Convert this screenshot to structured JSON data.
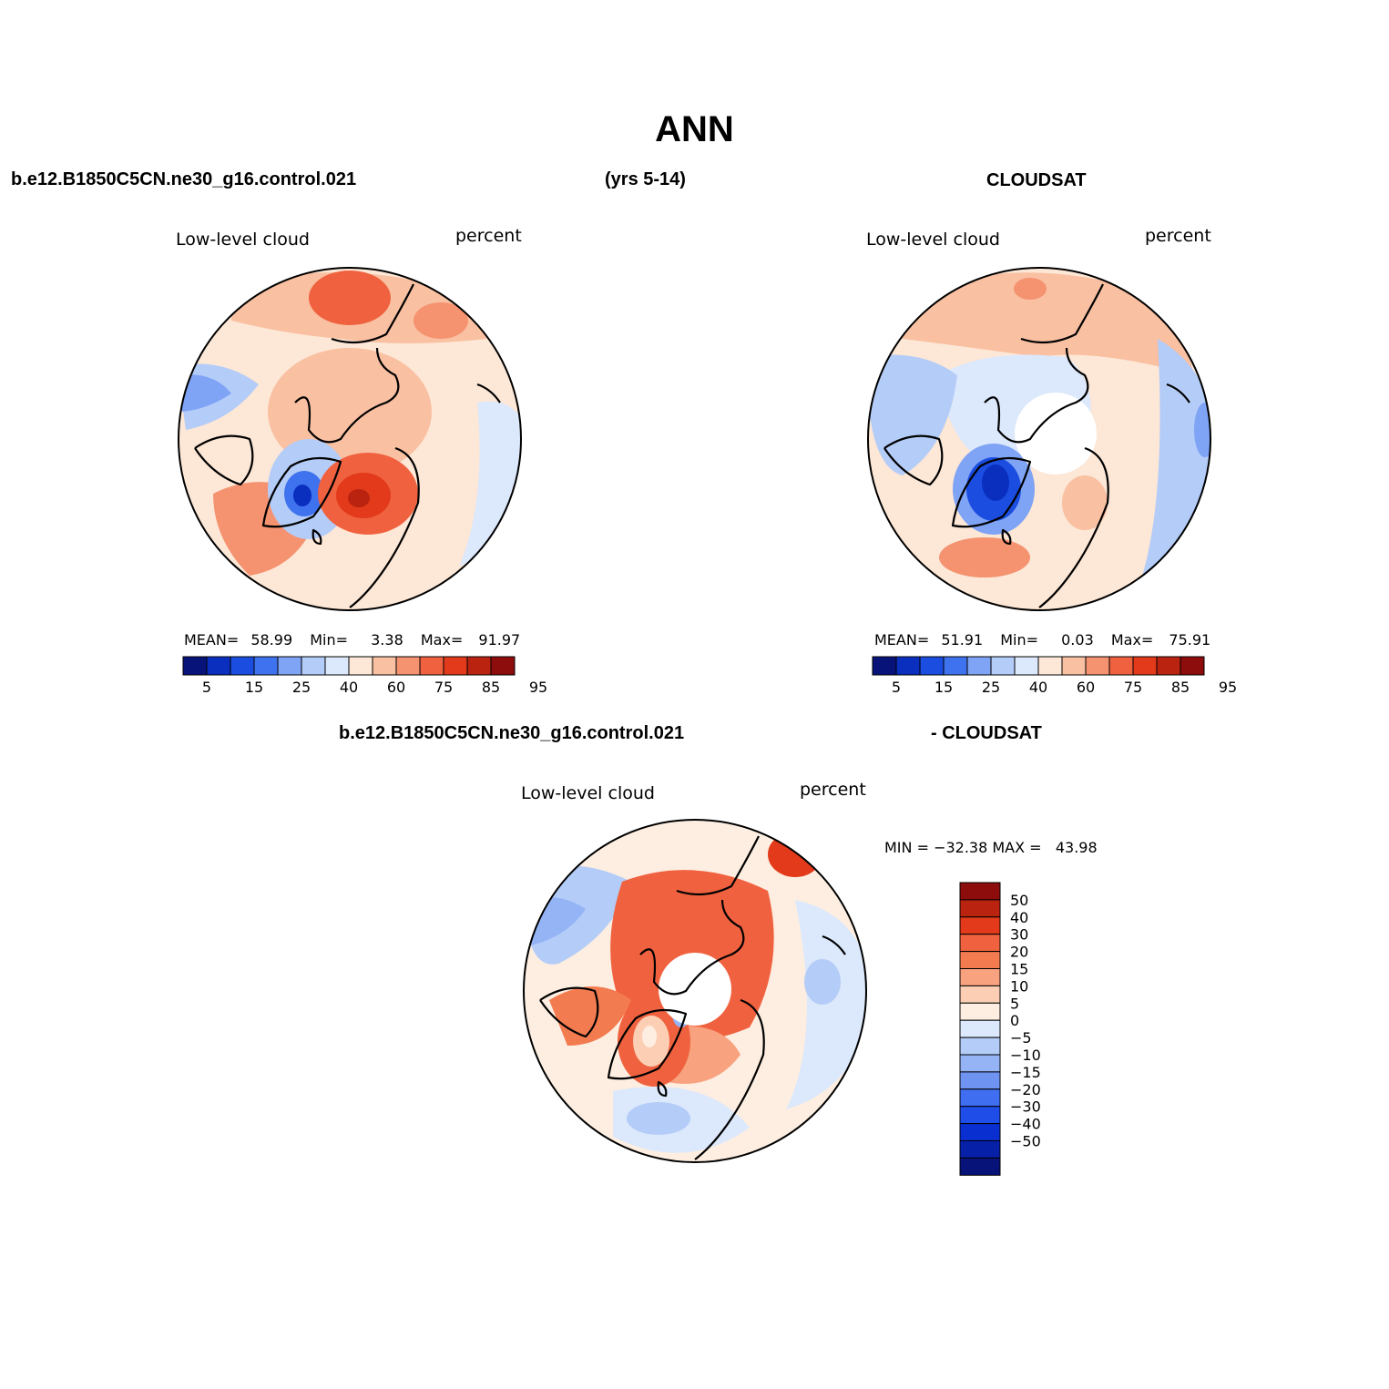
{
  "title": "ANN",
  "header": {
    "case_name": "b.e12.B1850C5CN.ne30_g16.control.021",
    "years": "(yrs 5-14)",
    "obs_name": "CLOUDSAT"
  },
  "diff_header": {
    "case_name": "b.e12.B1850C5CN.ne30_g16.control.021",
    "obs_name": "- CLOUDSAT"
  },
  "panels": {
    "model": {
      "variable": "Low-level cloud",
      "units": "percent",
      "stats": {
        "mean_label": "MEAN=",
        "mean": "58.99",
        "min_label": "Min=",
        "min": "3.38",
        "max_label": "Max=",
        "max": "91.97"
      }
    },
    "obs": {
      "variable": "Low-level cloud",
      "units": "percent",
      "stats": {
        "mean_label": "MEAN=",
        "mean": "51.91",
        "min_label": "Min=",
        "min": "0.03",
        "max_label": "Max=",
        "max": "75.91"
      }
    },
    "diff": {
      "variable": "Low-level cloud",
      "units": "percent",
      "minmax": "MIN = −32.38 MAX =   43.98"
    }
  },
  "colorbar_abs": {
    "colors": [
      "#08137a",
      "#0a2fbf",
      "#1a4de0",
      "#3f72ee",
      "#7fa3f5",
      "#b4ccf8",
      "#dce8fb",
      "#fde7d6",
      "#f9c0a2",
      "#f59270",
      "#f0623f",
      "#e23a1a",
      "#b9230f",
      "#8c0d0b"
    ],
    "labels": [
      "5",
      "15",
      "25",
      "40",
      "60",
      "75",
      "85",
      "95"
    ]
  },
  "colorbar_diff": {
    "colors": [
      "#8c0d0b",
      "#b9230f",
      "#e23a1a",
      "#f0623f",
      "#f37b50",
      "#f9a27f",
      "#fccfb4",
      "#fdeee1",
      "#dce8fb",
      "#b4ccf8",
      "#94b4f6",
      "#6f93f0",
      "#3f6ff0",
      "#1e4de8",
      "#0a2fd0",
      "#0620a8",
      "#08137a"
    ],
    "labels": [
      "50",
      "40",
      "30",
      "20",
      "15",
      "10",
      "5",
      "0",
      "−5",
      "−10",
      "−15",
      "−20",
      "−30",
      "−40",
      "−50"
    ]
  }
}
